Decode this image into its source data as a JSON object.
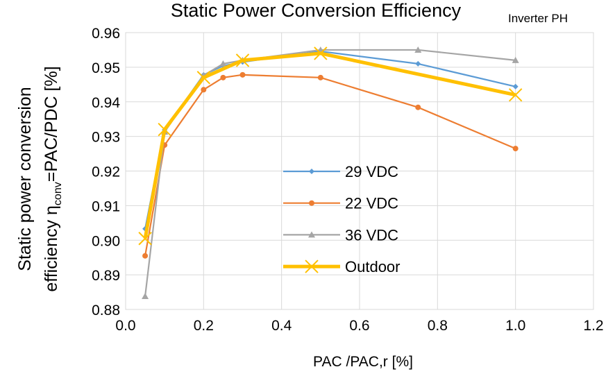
{
  "chart_data": {
    "type": "line",
    "title": "Static Power Conversion Efficiency",
    "subtitle": "Inverter PH",
    "xlabel": "PAC /PAC,r [%]",
    "ylabel": [
      "Static power conversion",
      "efficiency η",
      "conv",
      "=PAC/PDC  [%]"
    ],
    "xlim": [
      0,
      1.2
    ],
    "xticks": [
      {
        "value": 0,
        "label": "0.0"
      },
      0.2,
      0.4,
      0.6,
      0.8,
      {
        "value": 1,
        "label": "1.0"
      },
      1.2
    ],
    "ylim": [
      0.88,
      0.96
    ],
    "yticks": [
      0.88,
      0.89,
      {
        "value": 0.9,
        "label": "0.90"
      },
      0.91,
      0.92,
      0.93,
      0.94,
      0.95,
      0.96
    ],
    "grid": true,
    "series": [
      {
        "name": "29 VDC",
        "color": "#5b9bd5",
        "marker": "diamond",
        "x": [
          0.05,
          0.1,
          0.2,
          0.25,
          0.3,
          0.5,
          0.75,
          1.0
        ],
        "values": [
          0.9033,
          0.9319,
          0.9478,
          0.9504,
          0.9515,
          0.9546,
          0.951,
          0.9444
        ]
      },
      {
        "name": "22 VDC",
        "color": "#ed7d31",
        "marker": "circle",
        "x": [
          0.05,
          0.1,
          0.2,
          0.25,
          0.3,
          0.5,
          0.75,
          1.0
        ],
        "values": [
          0.8955,
          0.9275,
          0.9435,
          0.947,
          0.9478,
          0.947,
          0.9384,
          0.9265
        ]
      },
      {
        "name": "36 VDC",
        "color": "#a5a5a5",
        "marker": "triangle",
        "x": [
          0.05,
          0.1,
          0.2,
          0.25,
          0.3,
          0.5,
          0.75,
          1.0
        ],
        "values": [
          0.8838,
          0.9313,
          0.9476,
          0.951,
          0.952,
          0.955,
          0.955,
          0.952
        ]
      },
      {
        "name": "Outdoor",
        "color": "#ffc000",
        "marker": "x",
        "width": 5,
        "x": [
          0.05,
          0.1,
          0.2,
          0.3,
          0.5,
          1.0
        ],
        "values": [
          0.9005,
          0.932,
          0.947,
          0.952,
          0.954,
          0.942
        ]
      }
    ]
  }
}
